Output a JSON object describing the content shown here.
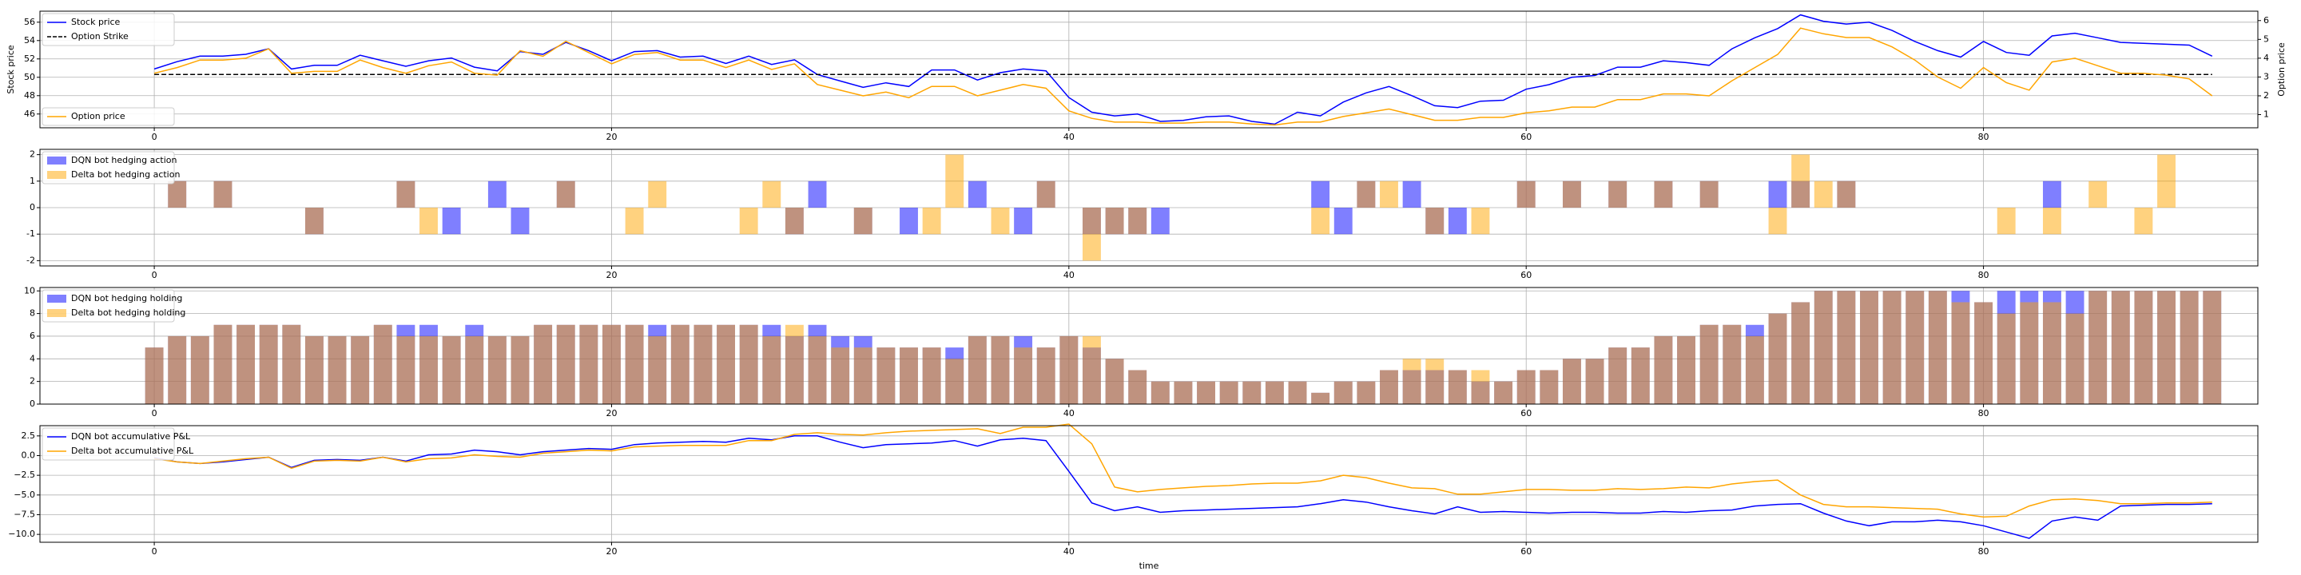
{
  "chart_data": [
    {
      "type": "line",
      "ylabel": "Stock price",
      "y2label": "Option price",
      "grid": true,
      "xlim": [
        -5,
        92
      ],
      "ylim": [
        44.5,
        57.2
      ],
      "y2lim": [
        0.3,
        6.5
      ],
      "xticks": [
        0,
        20,
        40,
        60,
        80
      ],
      "yticks": [
        46,
        48,
        50,
        52,
        54,
        56
      ],
      "y2ticks": [
        1,
        2,
        3,
        4,
        5,
        6
      ],
      "legend_top_left": [
        "Stock price",
        "Option Strike"
      ],
      "legend_bottom_left": [
        "Option price"
      ],
      "series": [
        {
          "name": "Stock price",
          "axis": "left",
          "color": "#0000ff",
          "style": "solid",
          "values": [
            50.9,
            51.7,
            52.3,
            52.3,
            52.5,
            53.1,
            50.9,
            51.3,
            51.3,
            52.4,
            51.8,
            51.2,
            51.8,
            52.1,
            51.1,
            50.7,
            52.8,
            52.5,
            53.8,
            52.9,
            51.8,
            52.8,
            52.9,
            52.2,
            52.3,
            51.5,
            52.3,
            51.4,
            51.9,
            50.3,
            49.6,
            48.9,
            49.4,
            49.0,
            50.8,
            50.8,
            49.7,
            50.5,
            50.9,
            50.7,
            47.8,
            46.2,
            45.8,
            46.0,
            45.2,
            45.3,
            45.7,
            45.8,
            45.2,
            44.9,
            46.2,
            45.8,
            47.3,
            48.3,
            49.0,
            48.0,
            46.9,
            46.7,
            47.4,
            47.5,
            48.7,
            49.2,
            50.0,
            50.2,
            51.1,
            51.1,
            51.8,
            51.6,
            51.3,
            53.1,
            54.3,
            55.3,
            56.8,
            56.1,
            55.8,
            56.0,
            55.1,
            53.9,
            52.9,
            52.2,
            53.9,
            52.7,
            52.4,
            54.5,
            54.8,
            54.3,
            53.8,
            53.7,
            53.6,
            53.5,
            52.3
          ],
          "x_start": 0
        },
        {
          "name": "Option Strike",
          "axis": "left",
          "color": "#000000",
          "style": "dashed",
          "values": [
            50.3,
            50.3
          ],
          "x": [
            0,
            90
          ]
        },
        {
          "name": "Option price",
          "axis": "right",
          "color": "#ffa500",
          "style": "solid",
          "values": [
            3.2,
            3.5,
            3.9,
            3.9,
            4.0,
            4.5,
            3.2,
            3.3,
            3.3,
            3.9,
            3.5,
            3.2,
            3.6,
            3.8,
            3.2,
            3.1,
            4.4,
            4.1,
            4.9,
            4.3,
            3.7,
            4.2,
            4.3,
            3.9,
            3.9,
            3.5,
            3.9,
            3.4,
            3.7,
            2.6,
            2.3,
            2.0,
            2.2,
            1.9,
            2.5,
            2.5,
            2.0,
            2.3,
            2.6,
            2.4,
            1.2,
            0.8,
            0.6,
            0.6,
            0.55,
            0.55,
            0.6,
            0.6,
            0.5,
            0.45,
            0.6,
            0.6,
            0.9,
            1.1,
            1.3,
            1.0,
            0.7,
            0.7,
            0.85,
            0.85,
            1.1,
            1.2,
            1.4,
            1.4,
            1.8,
            1.8,
            2.1,
            2.1,
            2.0,
            2.8,
            3.5,
            4.2,
            5.6,
            5.3,
            5.1,
            5.1,
            4.6,
            3.9,
            3.0,
            2.4,
            3.5,
            2.7,
            2.3,
            3.8,
            4.0,
            3.6,
            3.2,
            3.2,
            3.1,
            2.9,
            2.0
          ],
          "x_start": 0
        }
      ]
    },
    {
      "type": "bar",
      "grid": true,
      "xlim": [
        -5,
        92
      ],
      "ylim": [
        -2.2,
        2.2
      ],
      "xticks": [
        0,
        20,
        40,
        60,
        80
      ],
      "yticks": [
        -2,
        -1,
        0,
        1,
        2
      ],
      "legend": [
        "DQN bot hedging action",
        "Delta bot hedging action"
      ],
      "series": [
        {
          "name": "DQN bot hedging action",
          "color": "#0000ff",
          "values": [
            0,
            1,
            0,
            1,
            0,
            0,
            0,
            -1,
            0,
            0,
            0,
            1,
            0,
            -1,
            0,
            1,
            -1,
            0,
            1,
            0,
            0,
            0,
            0,
            0,
            0,
            0,
            0,
            0,
            -1,
            1,
            0,
            -1,
            0,
            -1,
            0,
            0,
            1,
            0,
            -1,
            1,
            0,
            -1,
            -1,
            -1,
            -1,
            0,
            0,
            0,
            0,
            0,
            0,
            1,
            -1,
            1,
            0,
            1,
            -1,
            -1,
            0,
            0,
            1,
            0,
            1,
            0,
            1,
            0,
            1,
            0,
            1,
            0,
            0,
            1,
            1,
            0,
            1,
            0,
            0,
            0,
            0,
            0,
            0,
            0,
            0,
            1,
            0,
            0,
            0,
            0,
            0,
            0,
            0
          ]
        },
        {
          "name": "Delta bot hedging action",
          "color": "#ffa500",
          "values": [
            0,
            1,
            0,
            1,
            0,
            0,
            0,
            -1,
            0,
            0,
            0,
            1,
            -1,
            0,
            0,
            0,
            0,
            0,
            1,
            0,
            0,
            -1,
            1,
            0,
            0,
            0,
            -1,
            1,
            -1,
            0,
            0,
            -1,
            0,
            0,
            -1,
            2,
            0,
            -1,
            0,
            1,
            0,
            -2,
            -1,
            -1,
            0,
            0,
            0,
            0,
            0,
            0,
            0,
            -1,
            0,
            1,
            1,
            0,
            -1,
            0,
            -1,
            0,
            1,
            0,
            1,
            0,
            1,
            0,
            1,
            0,
            1,
            0,
            0,
            -1,
            2,
            1,
            1,
            0,
            0,
            0,
            0,
            0,
            0,
            -1,
            0,
            -1,
            0,
            1,
            0,
            -1,
            2,
            0,
            0
          ]
        }
      ]
    },
    {
      "type": "bar",
      "grid": true,
      "xlim": [
        -5,
        92
      ],
      "ylim": [
        0,
        10.3
      ],
      "xticks": [
        0,
        20,
        40,
        60,
        80
      ],
      "yticks": [
        0,
        2,
        4,
        6,
        8,
        10
      ],
      "legend": [
        "DQN bot hedging holding",
        "Delta bot hedging holding"
      ],
      "series": [
        {
          "name": "DQN bot hedging holding",
          "color": "#0000ff",
          "values": [
            5,
            6,
            6,
            7,
            7,
            7,
            7,
            6,
            6,
            6,
            7,
            7,
            7,
            6,
            7,
            6,
            6,
            7,
            7,
            7,
            7,
            7,
            7,
            7,
            7,
            7,
            7,
            7,
            6,
            7,
            6,
            6,
            5,
            5,
            5,
            5,
            6,
            6,
            6,
            5,
            6,
            5,
            4,
            3,
            2,
            2,
            2,
            2,
            2,
            2,
            2,
            1,
            2,
            2,
            3,
            3,
            3,
            3,
            2,
            2,
            3,
            3,
            4,
            4,
            5,
            5,
            6,
            6,
            7,
            7,
            7,
            8,
            9,
            10,
            10,
            10,
            10,
            10,
            10,
            10,
            9,
            10,
            10,
            10,
            10,
            10,
            10,
            10,
            10,
            10,
            10
          ]
        },
        {
          "name": "Delta bot hedging holding",
          "color": "#ffa500",
          "values": [
            5,
            6,
            6,
            7,
            7,
            7,
            7,
            6,
            6,
            6,
            7,
            6,
            6,
            6,
            6,
            6,
            6,
            7,
            7,
            7,
            7,
            7,
            6,
            7,
            7,
            7,
            7,
            6,
            7,
            6,
            5,
            5,
            5,
            5,
            5,
            4,
            6,
            6,
            5,
            5,
            6,
            6,
            4,
            3,
            2,
            2,
            2,
            2,
            2,
            2,
            2,
            1,
            2,
            2,
            3,
            4,
            4,
            3,
            3,
            2,
            3,
            3,
            4,
            4,
            5,
            5,
            6,
            6,
            7,
            7,
            6,
            8,
            9,
            10,
            10,
            10,
            10,
            10,
            10,
            9,
            9,
            8,
            9,
            9,
            8,
            10,
            10,
            10,
            10,
            10,
            10
          ]
        }
      ]
    },
    {
      "type": "line",
      "xlabel": "time",
      "grid": true,
      "xlim": [
        -5,
        92
      ],
      "ylim": [
        -11.0,
        3.8
      ],
      "xticks": [
        0,
        20,
        40,
        60,
        80
      ],
      "yticks": [
        -10.0,
        -7.5,
        -5.0,
        -2.5,
        0.0,
        2.5
      ],
      "ytick_labels": [
        "−10.0",
        "−7.5",
        "−5.0",
        "−2.5",
        "0.0",
        "2.5"
      ],
      "legend": [
        "DQN bot accumulative P&L",
        "Delta bot accumulative P&L"
      ],
      "series": [
        {
          "name": "DQN bot accumulative P&L",
          "color": "#0000ff",
          "values": [
            -0.3,
            -0.8,
            -1.0,
            -0.8,
            -0.5,
            -0.2,
            -1.5,
            -0.6,
            -0.5,
            -0.6,
            -0.2,
            -0.7,
            0.1,
            0.2,
            0.7,
            0.5,
            0.1,
            0.5,
            0.7,
            0.9,
            0.8,
            1.4,
            1.6,
            1.7,
            1.8,
            1.7,
            2.2,
            2.0,
            2.5,
            2.5,
            1.7,
            1.0,
            1.4,
            1.5,
            1.6,
            1.9,
            1.2,
            2.0,
            2.2,
            1.9,
            -2.0,
            -6.0,
            -7.0,
            -6.5,
            -7.2,
            -7.0,
            -6.9,
            -6.8,
            -6.7,
            -6.6,
            -6.5,
            -6.1,
            -5.6,
            -5.9,
            -6.5,
            -7.0,
            -7.4,
            -6.5,
            -7.2,
            -7.1,
            -7.2,
            -7.3,
            -7.2,
            -7.2,
            -7.3,
            -7.3,
            -7.1,
            -7.2,
            -7.0,
            -6.9,
            -6.4,
            -6.2,
            -6.1,
            -7.3,
            -8.3,
            -8.9,
            -8.4,
            -8.4,
            -8.2,
            -8.4,
            -8.9,
            -9.7,
            -10.5,
            -8.3,
            -7.8,
            -8.2,
            -6.4,
            -6.3,
            -6.2,
            -6.2,
            -6.1
          ]
        },
        {
          "name": "Delta bot accumulative P&L",
          "color": "#ffa500",
          "values": [
            -0.4,
            -0.8,
            -1.0,
            -0.7,
            -0.4,
            -0.2,
            -1.6,
            -0.7,
            -0.6,
            -0.7,
            -0.2,
            -0.8,
            -0.4,
            -0.3,
            0.1,
            -0.1,
            -0.2,
            0.3,
            0.5,
            0.7,
            0.6,
            1.1,
            1.2,
            1.3,
            1.3,
            1.3,
            1.9,
            1.9,
            2.7,
            2.9,
            2.7,
            2.6,
            2.9,
            3.1,
            3.2,
            3.3,
            3.4,
            2.8,
            3.6,
            3.6,
            4.0,
            1.5,
            -4.0,
            -4.6,
            -4.3,
            -4.1,
            -3.9,
            -3.8,
            -3.6,
            -3.5,
            -3.5,
            -3.2,
            -2.5,
            -2.8,
            -3.5,
            -4.1,
            -4.2,
            -4.9,
            -4.9,
            -4.6,
            -4.3,
            -4.3,
            -4.4,
            -4.4,
            -4.2,
            -4.3,
            -4.2,
            -4.0,
            -4.1,
            -3.6,
            -3.3,
            -3.1,
            -5.0,
            -6.2,
            -6.5,
            -6.5,
            -6.6,
            -6.7,
            -6.8,
            -7.4,
            -7.8,
            -7.7,
            -6.4,
            -5.6,
            -5.5,
            -5.7,
            -6.1,
            -6.1,
            -6.0,
            -6.0,
            -5.9
          ]
        }
      ]
    }
  ]
}
